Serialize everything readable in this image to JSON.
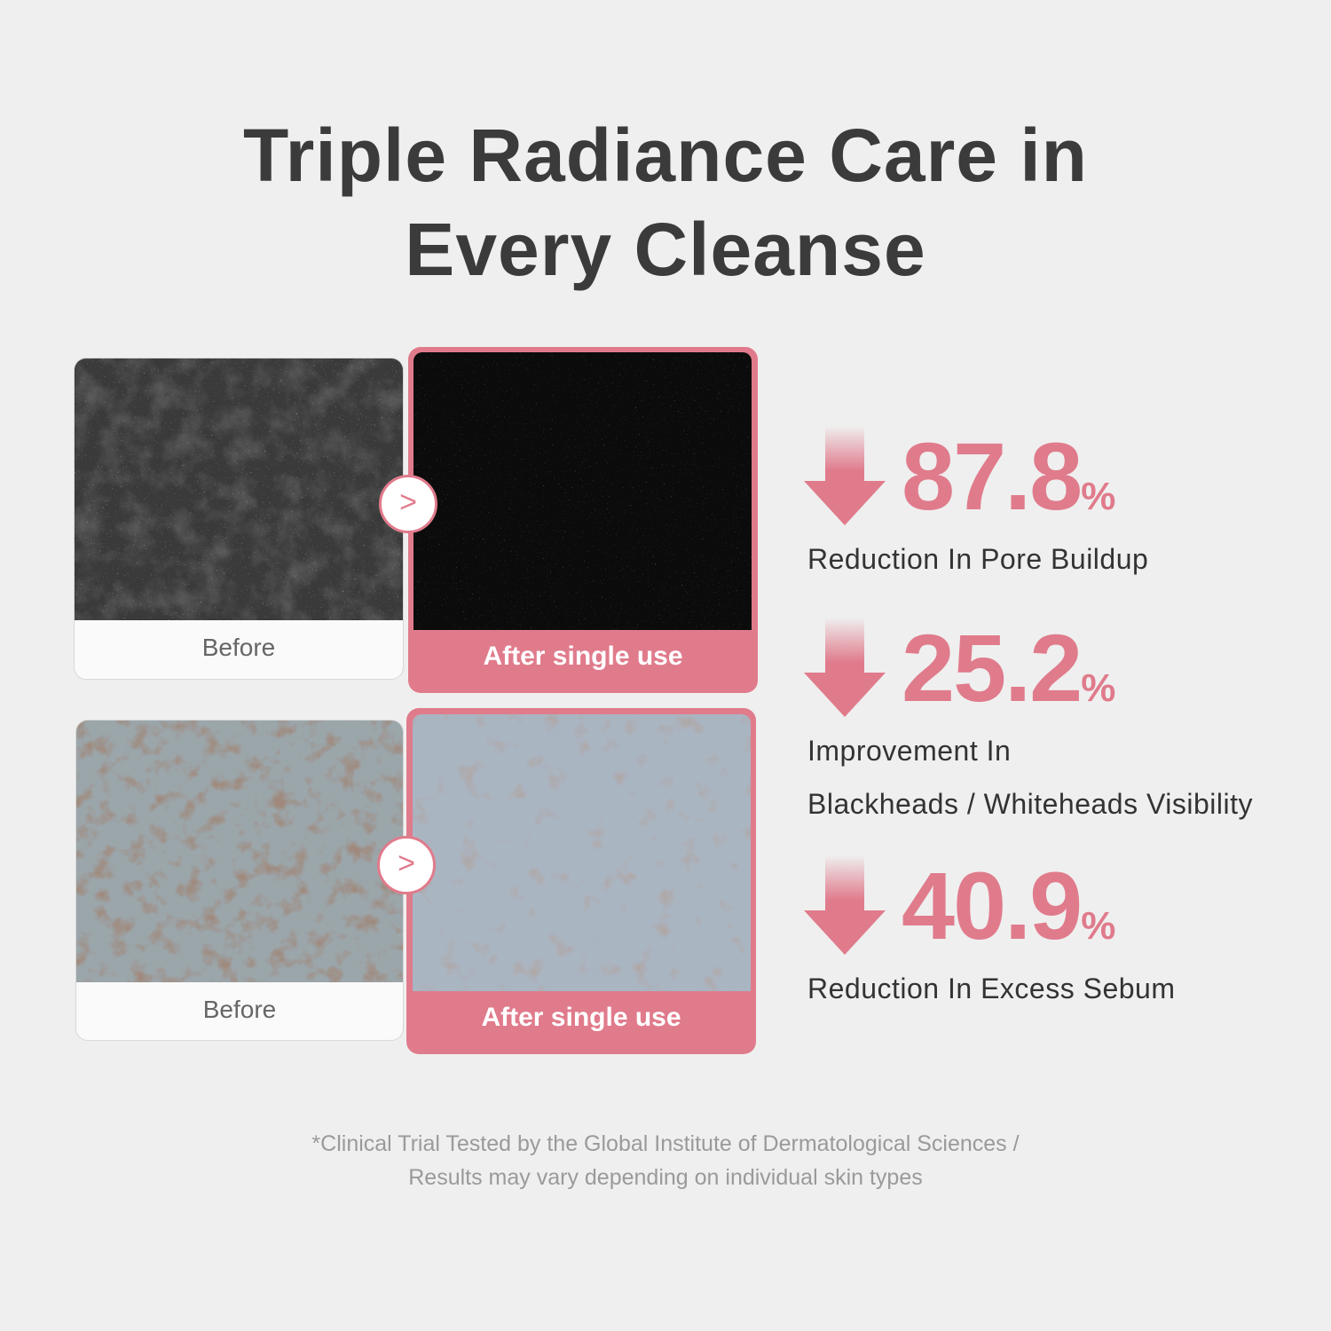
{
  "title": {
    "line1": "Triple Radiance Care in",
    "line2": "Every Cleanse"
  },
  "comparisons": [
    {
      "before_label": "Before",
      "after_label": "After single use",
      "arrow_icon": "chevron-right-icon"
    },
    {
      "before_label": "Before",
      "after_label": "After single use",
      "arrow_icon": "chevron-right-icon"
    }
  ],
  "stats": [
    {
      "value": "87.8",
      "unit": "%",
      "label_lines": [
        "Reduction In Pore Buildup"
      ],
      "icon": "arrow-down-icon"
    },
    {
      "value": "25.2",
      "unit": "%",
      "label_lines": [
        "Improvement In",
        "Blackheads / Whiteheads Visibility"
      ],
      "icon": "arrow-down-icon"
    },
    {
      "value": "40.9",
      "unit": "%",
      "label_lines": [
        "Reduction In Excess Sebum"
      ],
      "icon": "arrow-down-icon"
    }
  ],
  "footnote": {
    "line1": "*Clinical Trial Tested by the Global Institute of Dermatological Sciences /",
    "line2": "Results may vary depending on individual skin types"
  },
  "colors": {
    "accent": "#e07b8c",
    "background": "#efefef",
    "title": "#3b3b3b"
  }
}
